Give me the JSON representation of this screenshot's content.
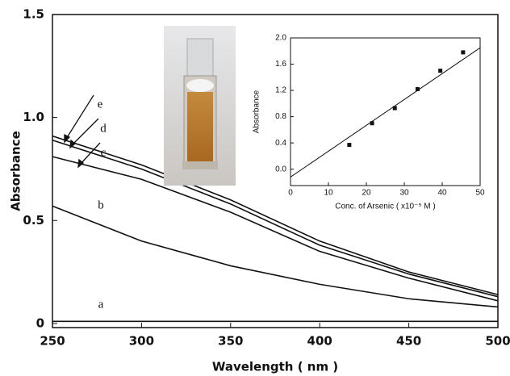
{
  "chart_data": [
    {
      "type": "line",
      "xlabel": "Wavelength ( nm )",
      "ylabel": "Absorbance",
      "x": [
        250,
        300,
        350,
        400,
        450,
        500
      ],
      "xlim": [
        250,
        500
      ],
      "xticks": [
        250,
        300,
        350,
        400,
        450,
        500
      ],
      "ylim": [
        -0.02,
        1.5
      ],
      "yticks": [
        0,
        0.5,
        {
          "value": 1,
          "label": "1.0"
        },
        1.5
      ],
      "series": [
        {
          "name": "a",
          "color": "#111111",
          "values": [
            0.01,
            0.01,
            0.01,
            0.01,
            0.01,
            0.01
          ]
        },
        {
          "name": "b",
          "color": "#111111",
          "values": [
            0.57,
            0.4,
            0.28,
            0.19,
            0.12,
            0.08
          ]
        },
        {
          "name": "c",
          "color": "#111111",
          "values": [
            0.81,
            0.7,
            0.54,
            0.35,
            0.22,
            0.11
          ]
        },
        {
          "name": "d",
          "color": "#111111",
          "values": [
            0.89,
            0.75,
            0.58,
            0.38,
            0.24,
            0.13
          ]
        },
        {
          "name": "e",
          "color": "#111111",
          "values": [
            0.91,
            0.77,
            0.6,
            0.4,
            0.25,
            0.14
          ]
        }
      ]
    },
    {
      "type": "scatter",
      "xlabel": "Conc. of Arsenic ( x10⁻⁵ M )",
      "ylabel": "Absorbance",
      "xlim": [
        0,
        50
      ],
      "xticks": [
        0,
        10,
        20,
        30,
        40,
        50
      ],
      "ylim": [
        -0.25,
        2.0
      ],
      "yticks": [
        {
          "value": 0,
          "label": "0.0"
        },
        {
          "value": 0.4,
          "label": "0.4"
        },
        {
          "value": 0.8,
          "label": "0.8"
        },
        {
          "value": 1.2,
          "label": "1.2"
        },
        {
          "value": 1.6,
          "label": "1.6"
        },
        {
          "value": 2,
          "label": "2.0"
        }
      ],
      "series": [
        {
          "type": "scatter",
          "color": "#111111",
          "x": [
            15.5,
            21.5,
            27.5,
            33.5,
            39.5,
            45.5
          ],
          "values": [
            0.37,
            0.7,
            0.93,
            1.22,
            1.5,
            1.78
          ]
        },
        {
          "type": "line",
          "color": "#111111",
          "x": [
            0,
            50
          ],
          "values": [
            -0.12,
            1.85
          ]
        }
      ]
    }
  ]
}
